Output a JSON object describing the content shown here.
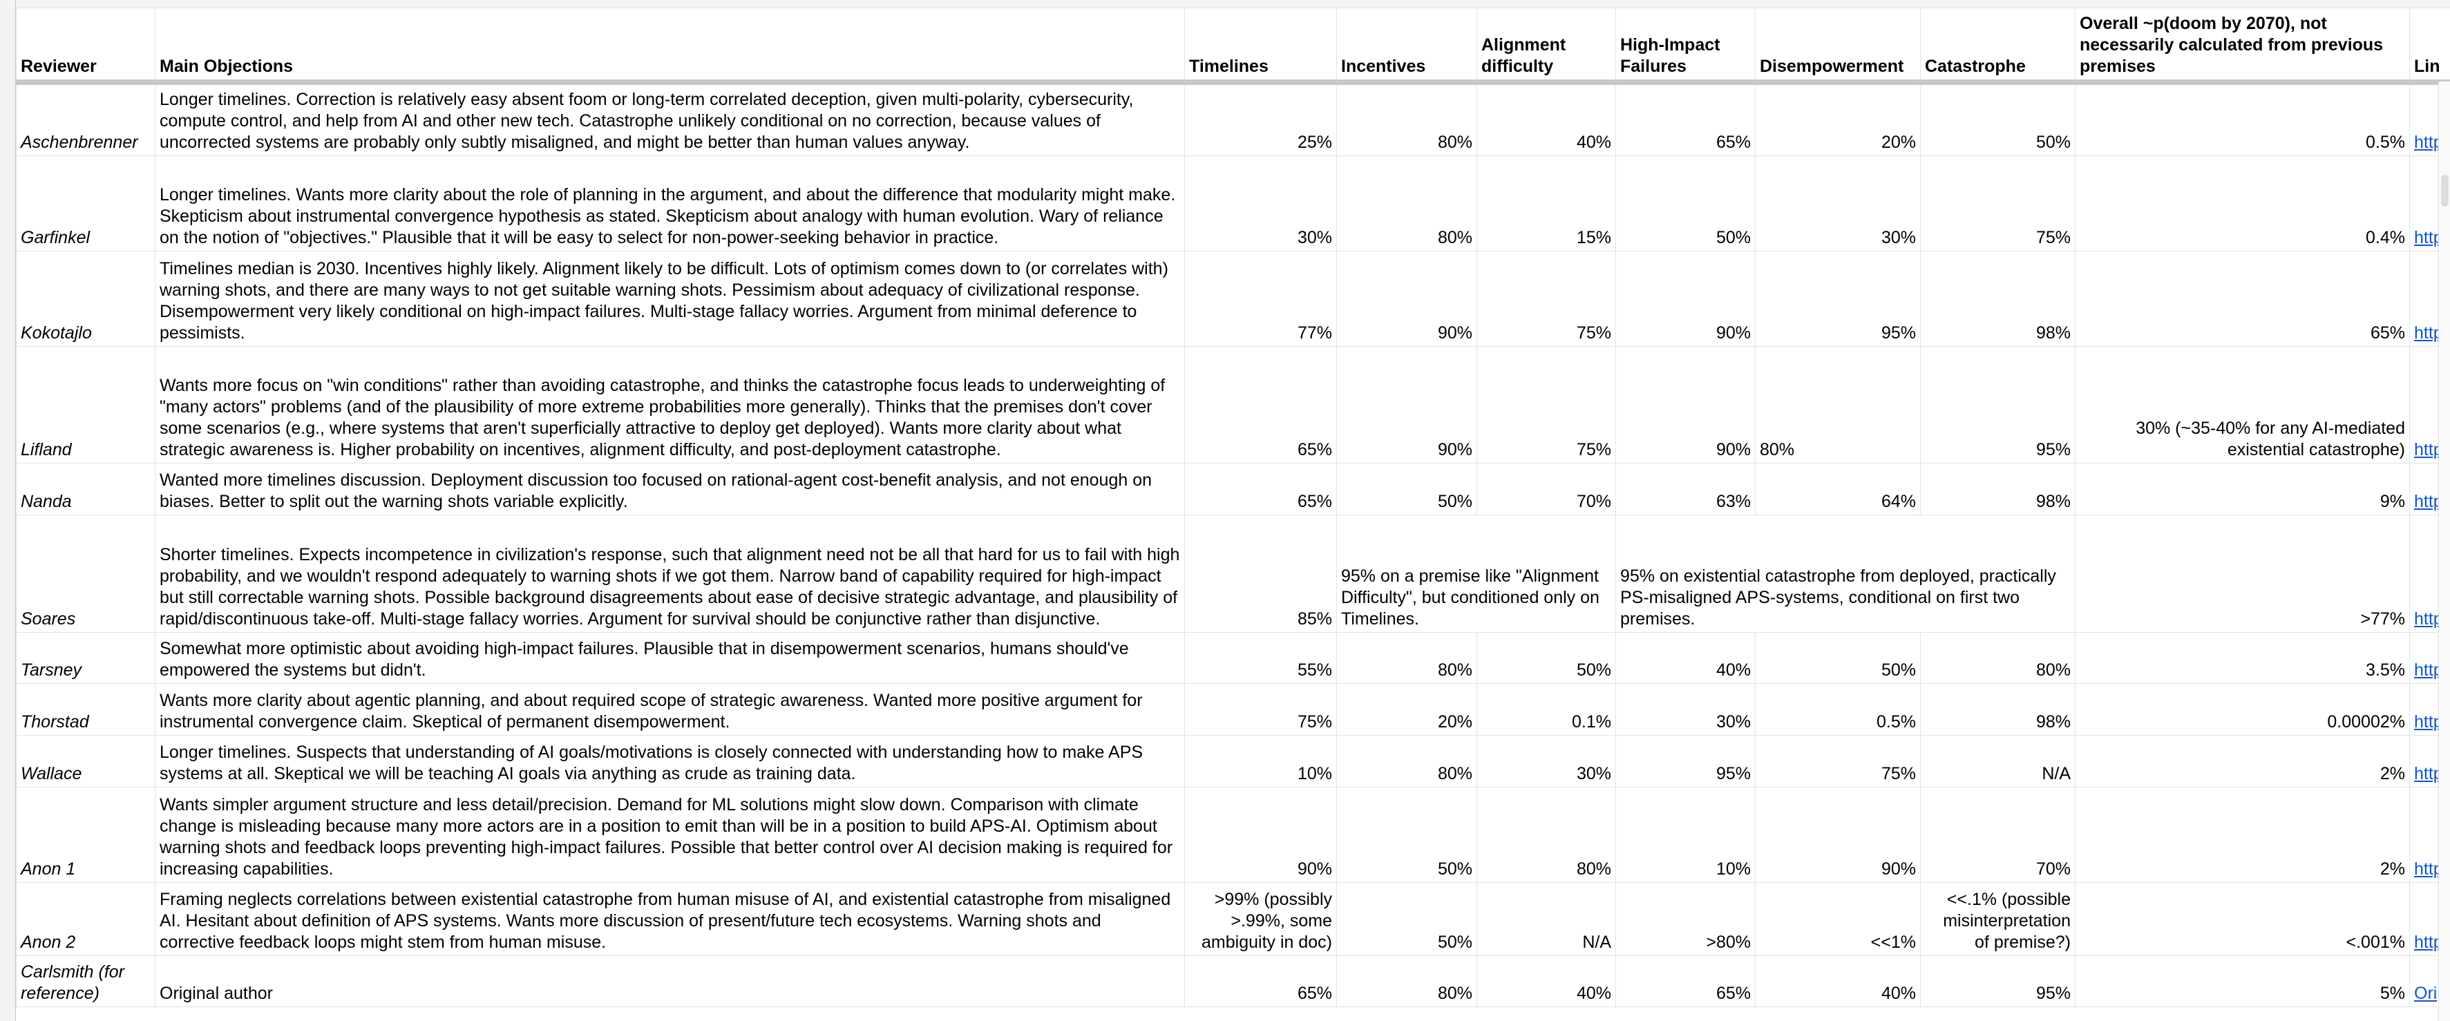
{
  "table": {
    "headers": [
      "Reviewer",
      "Main Objections",
      "Timelines",
      "Incentives",
      "Alignment difficulty",
      "High-Impact Failures",
      "Disempowerment",
      "Catastrophe",
      "Overall ~p(doom by 2070), not necessarily calculated from previous premises",
      "Lin"
    ],
    "rows": [
      [
        "Aschenbrenner",
        "Longer timelines. Correction is relatively easy absent foom or long-term correlated deception, given multi-polarity, cybersecurity, compute control, and help from AI and other new tech. Catastrophe unlikely conditional on no correction, because values of uncorrected systems are probably only subtly misaligned, and might be better than human values anyway.",
        "25%",
        "80%",
        "40%",
        "65%",
        "20%",
        "50%",
        "0.5%",
        "http"
      ],
      [
        "Garfinkel",
        "Longer timelines. Wants more clarity about the role of planning in the argument, and about the difference that modularity might make. Skepticism about instrumental convergence hypothesis as stated. Skepticism about analogy with human evolution. Wary of reliance on the notion of \"objectives.\" Plausible that it will be easy to select for non-power-seeking behavior in practice.",
        "30%",
        "80%",
        "15%",
        "50%",
        "30%",
        "75%",
        "0.4%",
        "http"
      ],
      [
        "Kokotajlo",
        "Timelines median is 2030. Incentives highly likely. Alignment likely to be difficult. Lots of optimism comes down to (or correlates with) warning shots, and there are many ways to not get suitable warning shots. Pessimism about adequacy of civilizational response. Disempowerment very likely conditional on high-impact failures. Multi-stage fallacy worries. Argument from minimal deference to pessimists.",
        "77%",
        "90%",
        "75%",
        "90%",
        "95%",
        "98%",
        "65%",
        "http"
      ],
      [
        "Lifland",
        "Wants more focus on \"win conditions\" rather than avoiding catastrophe, and thinks the catastrophe focus leads to underweighting of \"many actors\" problems (and of the plausibility of more extreme probabilities more generally). Thinks that the premises don't cover some scenarios (e.g., where systems that aren't superficially attractive to deploy get deployed). Wants more clarity about what strategic awareness is. Higher probability on incentives, alignment difficulty, and post-deployment catastrophe.",
        "65%",
        "90%",
        "75%",
        "90%",
        "80%",
        "95%",
        "30% (~35-40% for any AI-mediated existential catastrophe)",
        "http"
      ],
      [
        "Nanda",
        "Wanted more timelines discussion. Deployment discussion too focused on rational-agent cost-benefit analysis, and not enough on biases. Better to split out the warning shots variable explicitly.",
        "65%",
        "50%",
        "70%",
        "63%",
        "64%",
        "98%",
        "9%",
        "http"
      ],
      [
        "Soares",
        "Shorter timelines. Expects incompetence in civilization's response, such that alignment need not be all that hard for us to fail with high probability, and we wouldn't respond adequately to warning shots if we got them. Narrow band of capability required for high-impact but still correctable warning shots. Possible background disagreements about ease of decisive strategic advantage, and plausibility of rapid/discontinuous take-off. Multi-stage fallacy worries. Argument for survival should be conjunctive rather than disjunctive.",
        "85%",
        "95% on a premise like \"Alignment Difficulty\", but conditioned only on Timelines.",
        "95% on existential catastrophe from deployed, practically PS-misaligned APS-systems, conditional on first two premises.",
        ">77%",
        "http"
      ],
      [
        "Tarsney",
        "Somewhat more optimistic about avoiding high-impact failures. Plausible that in disempowerment scenarios, humans should've empowered the systems but didn't.",
        "55%",
        "80%",
        "50%",
        "40%",
        "50%",
        "80%",
        "3.5%",
        "http"
      ],
      [
        "Thorstad",
        "Wants more clarity about agentic planning, and about required scope of strategic awareness. Wanted more positive argument for instrumental convergence claim. Skeptical of permanent disempowerment.",
        "75%",
        "20%",
        "0.1%",
        "30%",
        "0.5%",
        "98%",
        "0.00002%",
        "http"
      ],
      [
        "Wallace",
        "Longer timelines. Suspects that understanding of AI goals/motivations is closely connected with understanding how to make APS systems at all. Skeptical we will be teaching AI goals via anything as crude as training data.",
        "10%",
        "80%",
        "30%",
        "95%",
        "75%",
        "N/A",
        "2%",
        "http"
      ],
      [
        "Anon 1",
        "Wants simpler argument structure and less detail/precision. Demand for ML solutions might slow down. Comparison with climate change is misleading because many more actors are in a position to emit than will be in a position to build APS-AI. Optimism about warning shots and feedback loops preventing high-impact failures. Possible that better control over AI decision making is required for increasing capabilities.",
        "90%",
        "50%",
        "80%",
        "10%",
        "90%",
        "70%",
        "2%",
        "http"
      ],
      [
        "Anon 2",
        "Framing neglects correlations between existential catastrophe from human misuse of AI, and existential catastrophe from misaligned AI. Hesitant about definition of APS systems. Wants more discussion of present/future tech ecosystems. Warning shots and corrective feedback loops might stem from human misuse.",
        ">99% (possibly >.99%, some ambiguity in doc)",
        "50%",
        "N/A",
        ">80%",
        "<<1%",
        "<<.1% (possible misinterpretation of premise?)",
        "<.001%",
        "http"
      ],
      [
        "Carlsmith (for reference)",
        "Original author",
        "65%",
        "80%",
        "40%",
        "65%",
        "40%",
        "95%",
        "5%",
        "Ori"
      ]
    ]
  }
}
